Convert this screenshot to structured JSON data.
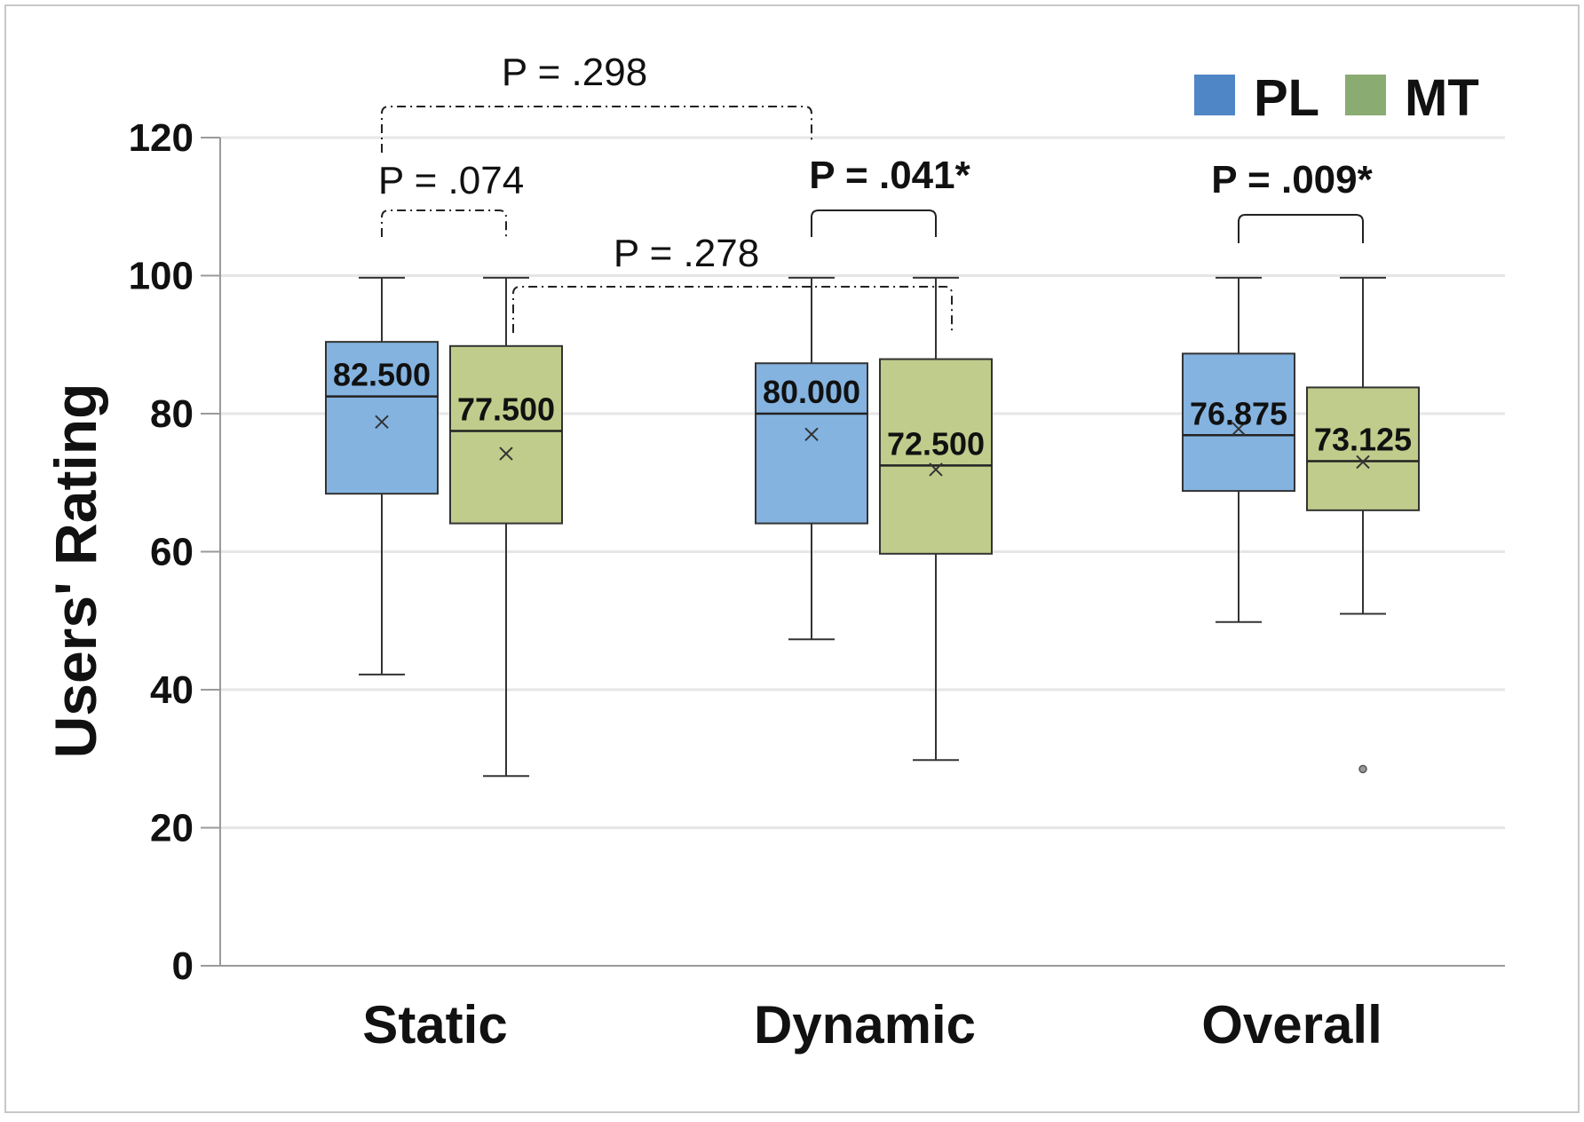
{
  "chart_data": {
    "type": "box",
    "ylabel": "Users' Rating",
    "xlabel": "",
    "ylim": [
      0,
      120
    ],
    "yticks": [
      0,
      20,
      40,
      60,
      80,
      100,
      120
    ],
    "grid": true,
    "legend_position": "top-right",
    "categories": [
      "Static",
      "Dynamic",
      "Overall"
    ],
    "series": [
      {
        "name": "PL",
        "color": "#4f86c6",
        "fill": "#84b3e0",
        "boxes": [
          {
            "category": "Static",
            "min": 42.2,
            "q1": 68.4,
            "median": 82.5,
            "q3": 90.4,
            "max": 99.7,
            "mean": 78.8,
            "median_label": "82.500"
          },
          {
            "category": "Dynamic",
            "min": 47.3,
            "q1": 64.1,
            "median": 80.0,
            "q3": 87.3,
            "max": 99.7,
            "mean": 77.0,
            "median_label": "80.000"
          },
          {
            "category": "Overall",
            "min": 49.8,
            "q1": 68.8,
            "median": 76.875,
            "q3": 88.7,
            "max": 99.7,
            "mean": 77.8,
            "median_label": "76.875"
          }
        ]
      },
      {
        "name": "MT",
        "color": "#8aab72",
        "fill": "#c0cc8b",
        "boxes": [
          {
            "category": "Static",
            "min": 27.5,
            "q1": 64.1,
            "median": 77.5,
            "q3": 89.8,
            "max": 99.7,
            "mean": 74.2,
            "median_label": "77.500"
          },
          {
            "category": "Dynamic",
            "min": 29.8,
            "q1": 59.7,
            "median": 72.5,
            "q3": 87.9,
            "max": 99.7,
            "mean": 71.9,
            "median_label": "72.500"
          },
          {
            "category": "Overall",
            "min": 51.0,
            "q1": 66.0,
            "median": 73.125,
            "q3": 83.8,
            "max": 99.7,
            "mean": 73.0,
            "median_label": "73.125",
            "outliers": [
              28.5
            ]
          }
        ]
      }
    ],
    "annotations": [
      {
        "text": "P = .298",
        "significant": false,
        "from": [
          "Static",
          "PL"
        ],
        "to": [
          "Dynamic",
          "PL"
        ]
      },
      {
        "text": "P = .074",
        "significant": false,
        "from": [
          "Static",
          "PL"
        ],
        "to": [
          "Static",
          "MT"
        ]
      },
      {
        "text": "P = .278",
        "significant": false,
        "from": [
          "Static",
          "MT"
        ],
        "to": [
          "Dynamic",
          "MT"
        ]
      },
      {
        "text": "P = .041*",
        "significant": true,
        "from": [
          "Dynamic",
          "PL"
        ],
        "to": [
          "Dynamic",
          "MT"
        ]
      },
      {
        "text": "P = .009*",
        "significant": true,
        "from": [
          "Overall",
          "PL"
        ],
        "to": [
          "Overall",
          "MT"
        ]
      }
    ]
  }
}
